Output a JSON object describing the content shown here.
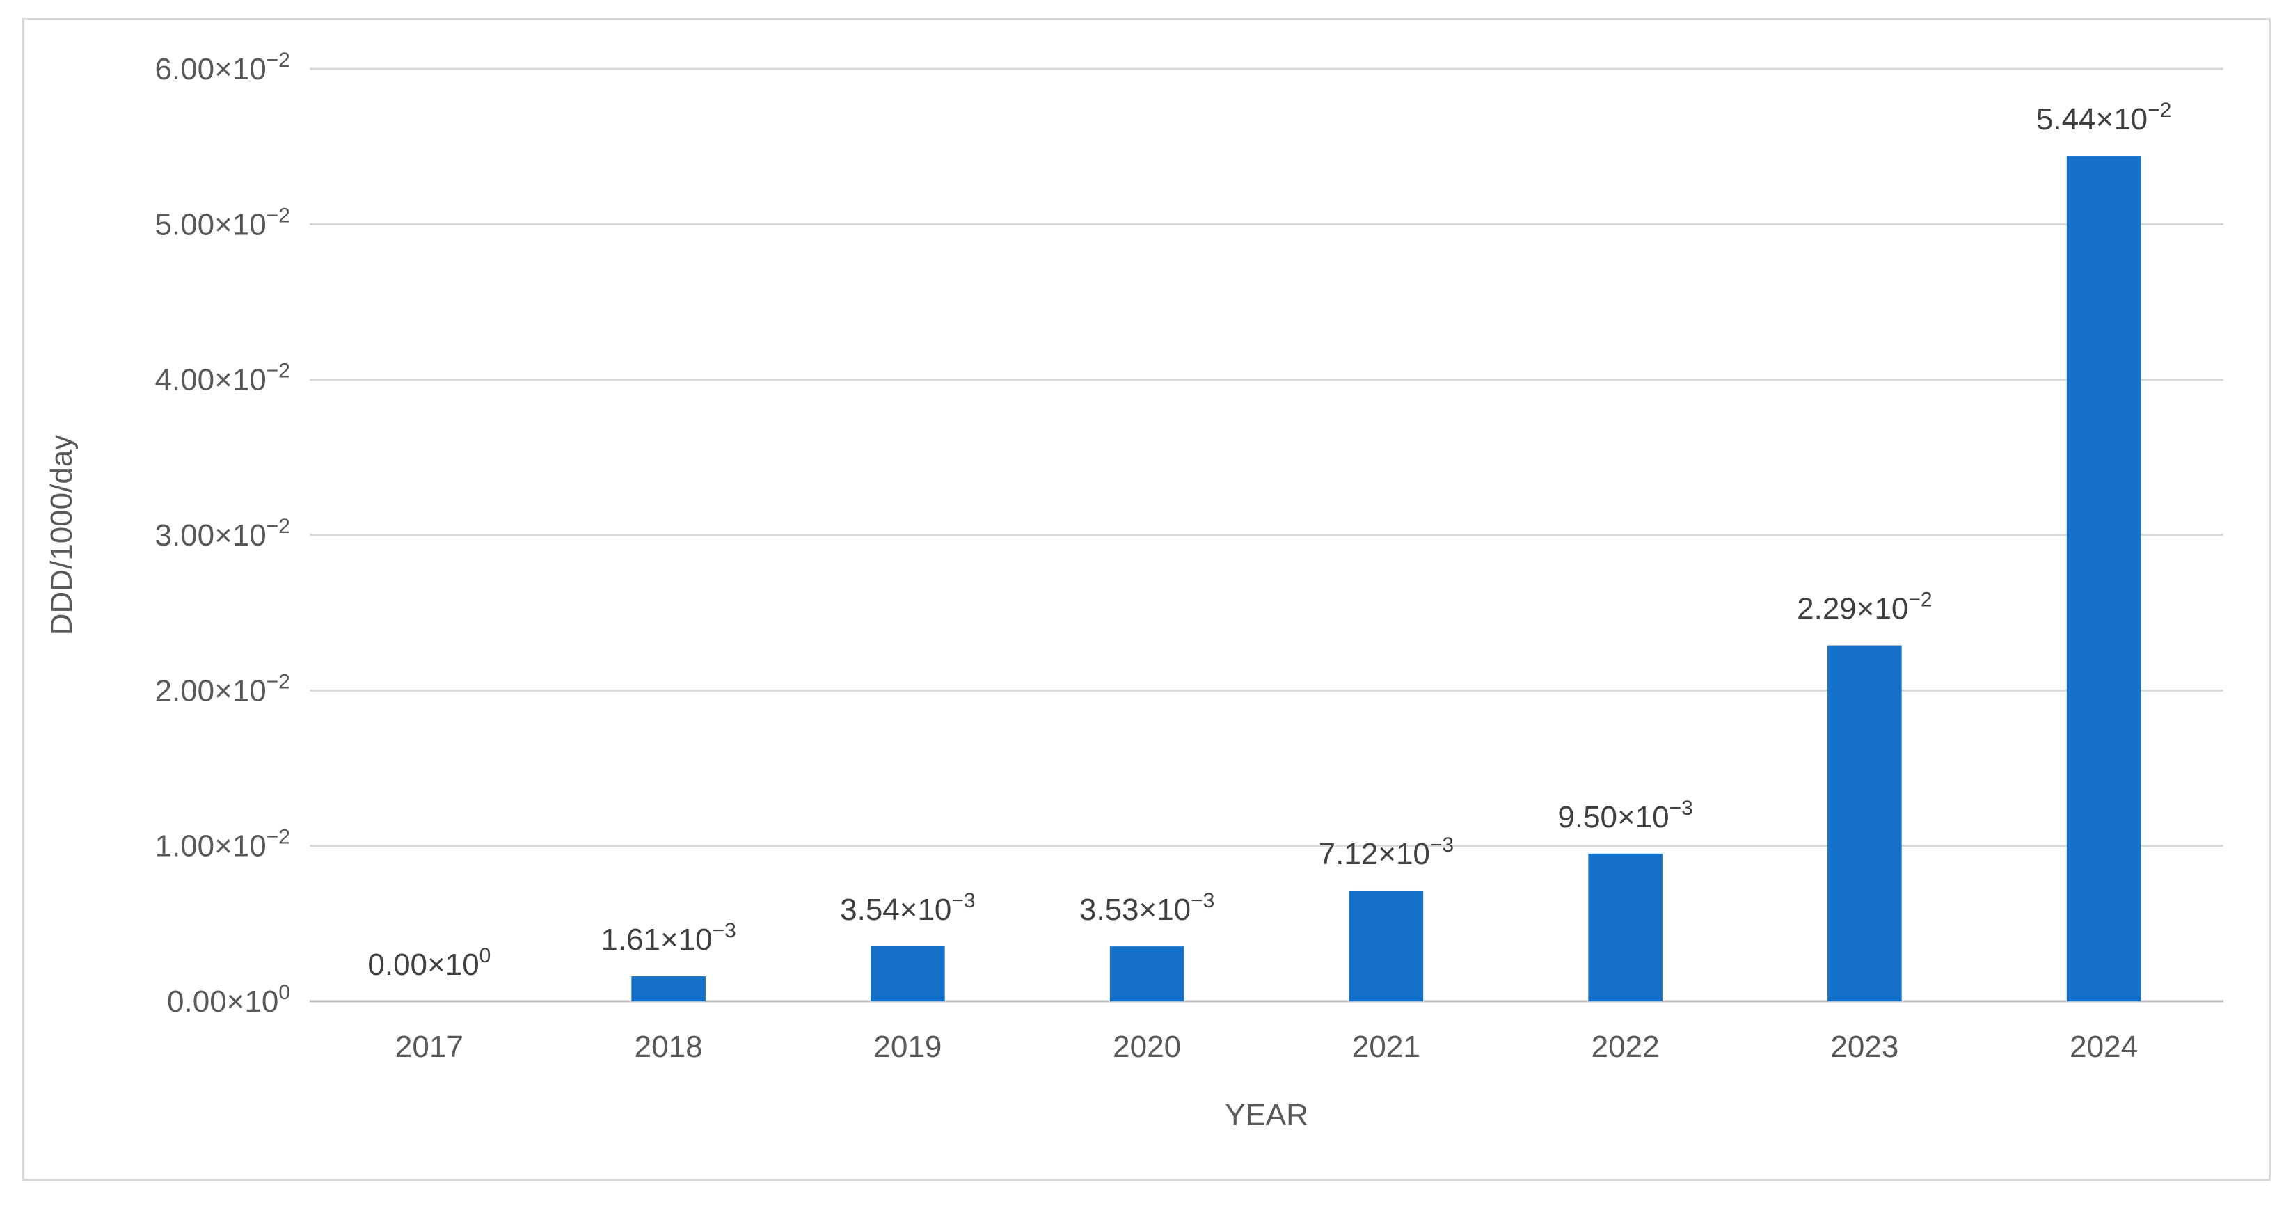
{
  "chart_data": {
    "type": "bar",
    "categories": [
      "2017",
      "2018",
      "2019",
      "2020",
      "2021",
      "2022",
      "2023",
      "2024"
    ],
    "values": [
      0,
      0.00161,
      0.00354,
      0.00353,
      0.00712,
      0.0095,
      0.0229,
      0.0544
    ],
    "data_labels": [
      {
        "mantissa": "0.00×10",
        "exponent": "0"
      },
      {
        "mantissa": "1.61×10",
        "exponent": "−3"
      },
      {
        "mantissa": "3.54×10",
        "exponent": "−3"
      },
      {
        "mantissa": "3.53×10",
        "exponent": "−3"
      },
      {
        "mantissa": "7.12×10",
        "exponent": "−3"
      },
      {
        "mantissa": "9.50×10",
        "exponent": "−3"
      },
      {
        "mantissa": "2.29×10",
        "exponent": "−2"
      },
      {
        "mantissa": "5.44×10",
        "exponent": "−2"
      }
    ],
    "title": "",
    "xlabel": "YEAR",
    "ylabel": "DDD/1000/day",
    "ylim": [
      0,
      0.06
    ],
    "yticks": [
      {
        "value": 0,
        "mantissa": "0.00×10",
        "exponent": "0"
      },
      {
        "value": 0.01,
        "mantissa": "1.00×10",
        "exponent": "−2"
      },
      {
        "value": 0.02,
        "mantissa": "2.00×10",
        "exponent": "−2"
      },
      {
        "value": 0.03,
        "mantissa": "3.00×10",
        "exponent": "−2"
      },
      {
        "value": 0.04,
        "mantissa": "4.00×10",
        "exponent": "−2"
      },
      {
        "value": 0.05,
        "mantissa": "5.00×10",
        "exponent": "−2"
      },
      {
        "value": 0.06,
        "mantissa": "6.00×10",
        "exponent": "−2"
      }
    ],
    "grid": true,
    "legend": "none",
    "bar_color": "#1470c8"
  }
}
